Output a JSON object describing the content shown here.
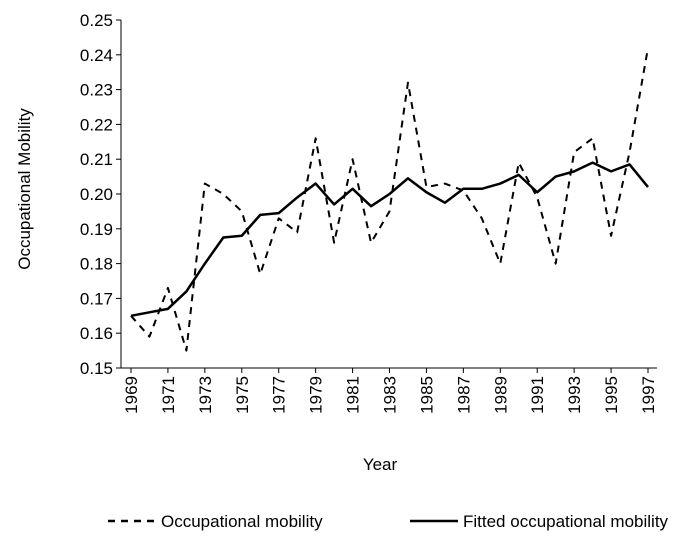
{
  "chart_data": {
    "type": "line",
    "x_label": "Year",
    "y_label": "Occupational Mobility",
    "x": [
      1969,
      1970,
      1971,
      1972,
      1973,
      1974,
      1975,
      1976,
      1977,
      1978,
      1979,
      1980,
      1981,
      1982,
      1983,
      1984,
      1985,
      1986,
      1987,
      1988,
      1989,
      1990,
      1991,
      1992,
      1993,
      1994,
      1995,
      1996,
      1997
    ],
    "series": [
      {
        "name": "Occupational mobility",
        "color": "#000000",
        "dash": true,
        "values": [
          0.165,
          0.159,
          0.173,
          0.155,
          0.203,
          0.2,
          0.195,
          0.177,
          0.193,
          0.189,
          0.216,
          0.186,
          0.21,
          0.186,
          0.195,
          0.232,
          0.202,
          0.203,
          0.201,
          0.193,
          0.18,
          0.209,
          0.199,
          0.18,
          0.212,
          0.216,
          0.188,
          0.212,
          0.242
        ]
      },
      {
        "name": "Fitted occupational mobility",
        "color": "#000000",
        "dash": false,
        "values": [
          0.165,
          0.166,
          0.167,
          0.172,
          0.18,
          0.1875,
          0.188,
          0.194,
          0.1945,
          0.199,
          0.203,
          0.197,
          0.2015,
          0.1965,
          0.2,
          0.2045,
          0.2005,
          0.1975,
          0.2015,
          0.2015,
          0.203,
          0.2055,
          0.2005,
          0.205,
          0.2065,
          0.209,
          0.2065,
          0.2085,
          0.202
        ]
      }
    ],
    "xlim": [
      1969,
      1997
    ],
    "xticks": [
      1969,
      1971,
      1973,
      1975,
      1977,
      1979,
      1981,
      1983,
      1985,
      1987,
      1989,
      1991,
      1993,
      1995,
      1997
    ],
    "ylim": [
      0.15,
      0.25
    ],
    "yticks": [
      0.15,
      0.16,
      0.17,
      0.18,
      0.19,
      {
        "value": 0.2,
        "label": "0.20"
      },
      0.21,
      0.22,
      0.23,
      0.24,
      0.25
    ],
    "grid": false,
    "legend": "bottom"
  }
}
